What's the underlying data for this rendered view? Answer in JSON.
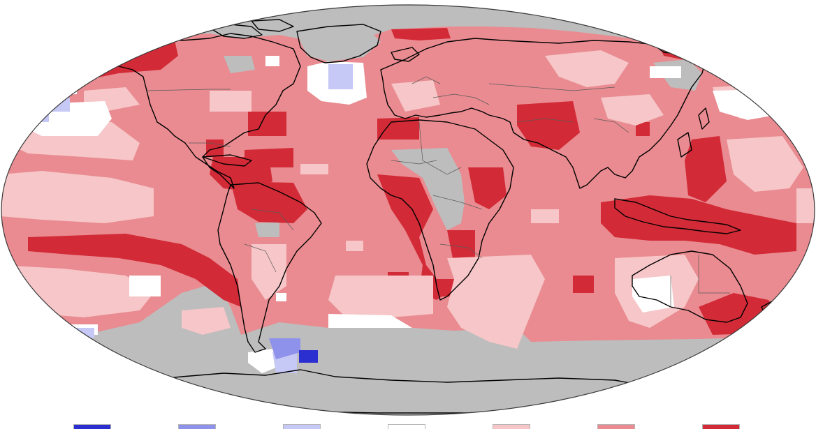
{
  "palette": {
    "record_coldest": "#2b2fd0",
    "much_cooler": "#8f92ea",
    "cooler": "#c6c8f5",
    "near_average": "#ffffff",
    "warmer": "#f6c6c8",
    "much_warmer": "#e98b90",
    "record_warmest": "#d22a36",
    "no_data": "#bdbdbd",
    "coastline": "#000000",
    "boundary": "#5a5a5a"
  },
  "legend": {
    "keys": [
      "record_coldest",
      "much_cooler",
      "cooler",
      "near_average",
      "warmer",
      "much_warmer",
      "record_warmest"
    ]
  }
}
